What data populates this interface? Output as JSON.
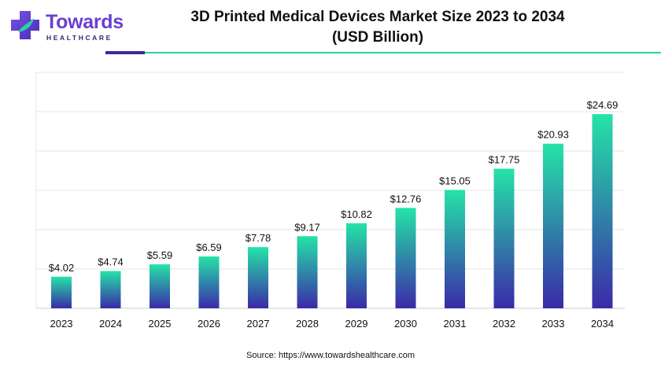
{
  "brand": {
    "name": "Towards",
    "tagline": "HEALTHCARE",
    "colors": {
      "primary": "#6a3fd0",
      "accent": "#29d1a3",
      "dark": "#3b2aa0"
    }
  },
  "chart_data": {
    "type": "bar",
    "title": "3D Printed Medical Devices Market Size 2023 to 2034",
    "subtitle": "(USD Billion)",
    "categories": [
      "2023",
      "2024",
      "2025",
      "2026",
      "2027",
      "2028",
      "2029",
      "2030",
      "2031",
      "2032",
      "2033",
      "2034"
    ],
    "values": [
      4.02,
      4.74,
      5.59,
      6.59,
      7.78,
      9.17,
      10.82,
      12.76,
      15.05,
      17.75,
      20.93,
      24.69
    ],
    "value_labels": [
      "$4.02",
      "$4.74",
      "$5.59",
      "$6.59",
      "$7.78",
      "$9.17",
      "$10.82",
      "$12.76",
      "$15.05",
      "$17.75",
      "$20.93",
      "$24.69"
    ],
    "ylim": [
      0,
      30
    ],
    "grid": true,
    "bar_gradient": {
      "top": "#25e3a8",
      "bottom": "#3a2aa8"
    }
  },
  "source": "Source: https://www.towardshealthcare.com"
}
